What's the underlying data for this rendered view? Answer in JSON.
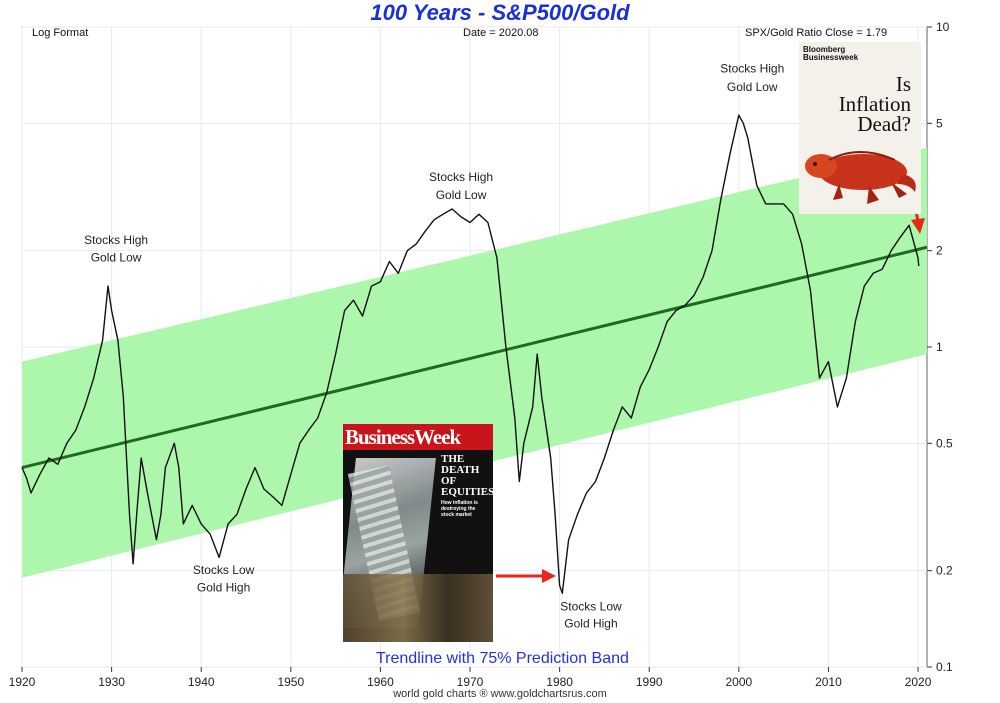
{
  "chart_data": {
    "type": "line",
    "title": "100 Years - S&P500/Gold",
    "scale": "log",
    "xlim": [
      1920,
      2021
    ],
    "ylim": [
      0.1,
      10
    ],
    "x_ticks": [
      "1920",
      "1930",
      "1940",
      "1950",
      "1960",
      "1970",
      "1980",
      "1990",
      "2000",
      "2010",
      "2020"
    ],
    "y_ticks": [
      "0.1",
      "0.2",
      "0.5",
      "1",
      "2",
      "5",
      "10"
    ],
    "series": [
      {
        "points": [
          [
            1920,
            0.42
          ],
          [
            1920.5,
            0.39
          ],
          [
            1921,
            0.35
          ],
          [
            1922,
            0.4
          ],
          [
            1923,
            0.45
          ],
          [
            1924,
            0.43
          ],
          [
            1925,
            0.5
          ],
          [
            1926,
            0.55
          ],
          [
            1927,
            0.65
          ],
          [
            1928,
            0.8
          ],
          [
            1929,
            1.05
          ],
          [
            1929.6,
            1.55
          ],
          [
            1930,
            1.3
          ],
          [
            1930.7,
            1.05
          ],
          [
            1931.3,
            0.7
          ],
          [
            1932,
            0.3
          ],
          [
            1932.4,
            0.21
          ],
          [
            1932.8,
            0.3
          ],
          [
            1933.3,
            0.45
          ],
          [
            1934,
            0.35
          ],
          [
            1935,
            0.25
          ],
          [
            1935.5,
            0.3
          ],
          [
            1936,
            0.42
          ],
          [
            1937,
            0.5
          ],
          [
            1937.5,
            0.42
          ],
          [
            1938,
            0.28
          ],
          [
            1939,
            0.32
          ],
          [
            1940,
            0.28
          ],
          [
            1941,
            0.26
          ],
          [
            1942,
            0.22
          ],
          [
            1943,
            0.28
          ],
          [
            1944,
            0.3
          ],
          [
            1945,
            0.36
          ],
          [
            1946,
            0.42
          ],
          [
            1947,
            0.36
          ],
          [
            1948,
            0.34
          ],
          [
            1949,
            0.32
          ],
          [
            1950,
            0.4
          ],
          [
            1951,
            0.5
          ],
          [
            1952,
            0.55
          ],
          [
            1953,
            0.6
          ],
          [
            1954,
            0.72
          ],
          [
            1955,
            0.95
          ],
          [
            1956,
            1.3
          ],
          [
            1957,
            1.4
          ],
          [
            1958,
            1.25
          ],
          [
            1959,
            1.55
          ],
          [
            1960,
            1.6
          ],
          [
            1961,
            1.85
          ],
          [
            1962,
            1.7
          ],
          [
            1963,
            2.0
          ],
          [
            1964,
            2.1
          ],
          [
            1965,
            2.3
          ],
          [
            1966,
            2.5
          ],
          [
            1967,
            2.6
          ],
          [
            1968,
            2.7
          ],
          [
            1969,
            2.55
          ],
          [
            1970,
            2.45
          ],
          [
            1971,
            2.6
          ],
          [
            1972,
            2.45
          ],
          [
            1973,
            1.9
          ],
          [
            1974,
            1.0
          ],
          [
            1975,
            0.6
          ],
          [
            1975.5,
            0.38
          ],
          [
            1976,
            0.5
          ],
          [
            1977,
            0.65
          ],
          [
            1977.5,
            0.95
          ],
          [
            1978,
            0.7
          ],
          [
            1979,
            0.45
          ],
          [
            1979.5,
            0.3
          ],
          [
            1980,
            0.18
          ],
          [
            1980.3,
            0.17
          ],
          [
            1981,
            0.25
          ],
          [
            1982,
            0.3
          ],
          [
            1983,
            0.35
          ],
          [
            1984,
            0.38
          ],
          [
            1985,
            0.45
          ],
          [
            1986,
            0.55
          ],
          [
            1987,
            0.65
          ],
          [
            1988,
            0.6
          ],
          [
            1989,
            0.75
          ],
          [
            1990,
            0.85
          ],
          [
            1991,
            1.0
          ],
          [
            1992,
            1.2
          ],
          [
            1993,
            1.3
          ],
          [
            1994,
            1.35
          ],
          [
            1995,
            1.45
          ],
          [
            1996,
            1.65
          ],
          [
            1997,
            2.0
          ],
          [
            1998,
            2.9
          ],
          [
            1999,
            4.0
          ],
          [
            2000,
            5.3
          ],
          [
            2000.5,
            5.0
          ],
          [
            2001,
            4.5
          ],
          [
            2002,
            3.2
          ],
          [
            2003,
            2.8
          ],
          [
            2004,
            2.8
          ],
          [
            2005,
            2.8
          ],
          [
            2006,
            2.6
          ],
          [
            2007,
            2.1
          ],
          [
            2008,
            1.5
          ],
          [
            2009,
            0.8
          ],
          [
            2010,
            0.9
          ],
          [
            2011,
            0.65
          ],
          [
            2012,
            0.8
          ],
          [
            2013,
            1.2
          ],
          [
            2014,
            1.55
          ],
          [
            2015,
            1.7
          ],
          [
            2016,
            1.75
          ],
          [
            2017,
            2.0
          ],
          [
            2018,
            2.2
          ],
          [
            2019,
            2.4
          ],
          [
            2020,
            1.9
          ],
          [
            2020.08,
            1.79
          ]
        ]
      },
      {
        "points": [
          [
            1920,
            0.42
          ],
          [
            2021,
            2.05
          ]
        ]
      },
      {
        "points": [
          [
            1920,
            0.9
          ],
          [
            2021,
            4.2
          ]
        ]
      },
      {
        "points": [
          [
            1920,
            0.19
          ],
          [
            2021,
            0.95
          ]
        ]
      }
    ],
    "annotations": [
      {
        "text": "Stocks High",
        "x": 1930.5,
        "y": 2.1
      },
      {
        "text": "Gold Low",
        "x": 1930.5,
        "y": 1.85
      },
      {
        "text": "Stocks Low",
        "x": 1942.5,
        "y": 0.195
      },
      {
        "text": "Gold High",
        "x": 1942.5,
        "y": 0.172
      },
      {
        "text": "Stocks High",
        "x": 1969,
        "y": 3.3
      },
      {
        "text": "Gold Low",
        "x": 1969,
        "y": 2.9
      },
      {
        "text": "Stocks Low",
        "x": 1983.5,
        "y": 0.15
      },
      {
        "text": "Gold High",
        "x": 1983.5,
        "y": 0.133
      },
      {
        "text": "Stocks High",
        "x": 2001.5,
        "y": 7.2
      },
      {
        "text": "Gold Low",
        "x": 2001.5,
        "y": 6.3
      }
    ]
  },
  "header": {
    "left": "Log Format",
    "center": "Date = 2020.08",
    "right": "SPX/Gold Ratio Close = 1.79"
  },
  "band_label": "Trendline with 75% Prediction Band",
  "footer": "world gold charts ® www.goldchartsrus.com",
  "covers": {
    "businessweek": {
      "masthead": "BusinessWeek",
      "headline": [
        "THE",
        "DEATH",
        "OF",
        "EQUITIES"
      ],
      "subhead": "How inflation is destroying the stock market"
    },
    "bloomberg": {
      "masthead": [
        "Bloomberg",
        "Businessweek"
      ],
      "headline": [
        "Is",
        "Inflation",
        "Dead?"
      ]
    }
  },
  "colors": {
    "band": "#adf7ad",
    "trend": "#1d6b1d",
    "line": "#111111",
    "title": "#1a2fd6",
    "arrow": "#e8261c"
  }
}
